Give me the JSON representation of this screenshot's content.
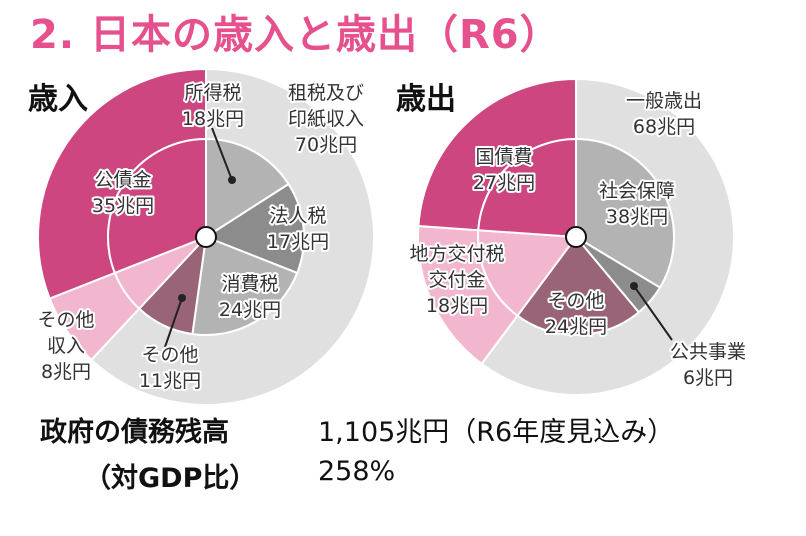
{
  "title": "2. 日本の歳入と歳出（R6）",
  "chart_data": [
    {
      "type": "pie",
      "title": "歳入",
      "unit": "兆円",
      "inner_ring": {
        "slices": [
          {
            "label": "所得税",
            "value": 18,
            "value_text": "18兆円",
            "color": "#b3b3b3"
          },
          {
            "label": "法人税",
            "value": 17,
            "value_text": "17兆円",
            "color": "#8c8c8c"
          },
          {
            "label": "消費税",
            "value": 24,
            "value_text": "24兆円",
            "color": "#b3b3b3"
          },
          {
            "label": "その他",
            "value": 11,
            "value_text": "11兆円",
            "color": "#9a6478"
          },
          {
            "label": "その他収入",
            "value": 8,
            "value_text": "8兆円",
            "color": "#f2b6cf"
          },
          {
            "label": "公債金",
            "value": 35,
            "value_text": "35兆円",
            "color": "#cd4680"
          }
        ]
      },
      "outer_ring": {
        "slices": [
          {
            "label": "租税及び印紙収入",
            "value": 70,
            "value_text": "70兆円",
            "color": "#e0e0e0"
          },
          {
            "label": "その他収入",
            "value": 8,
            "value_text": "8兆円",
            "color": "#f2b6cf"
          },
          {
            "label": "公債金",
            "value": 35,
            "value_text": "35兆円",
            "color": "#cd4680"
          }
        ]
      }
    },
    {
      "type": "pie",
      "title": "歳出",
      "unit": "兆円",
      "inner_ring": {
        "slices": [
          {
            "label": "社会保障",
            "value": 38,
            "value_text": "38兆円",
            "color": "#b3b3b3"
          },
          {
            "label": "公共事業",
            "value": 6,
            "value_text": "6兆円",
            "color": "#8c8c8c"
          },
          {
            "label": "その他",
            "value": 24,
            "value_text": "24兆円",
            "color": "#9a6478"
          },
          {
            "label": "地方交付税交付金",
            "value": 18,
            "value_text": "18兆円",
            "color": "#f2b6cf"
          },
          {
            "label": "国債費",
            "value": 27,
            "value_text": "27兆円",
            "color": "#cd4680"
          }
        ]
      },
      "outer_ring": {
        "slices": [
          {
            "label": "一般歳出",
            "value": 68,
            "value_text": "68兆円",
            "color": "#e0e0e0"
          },
          {
            "label": "地方交付税交付金",
            "value": 18,
            "value_text": "18兆円",
            "color": "#f2b6cf"
          },
          {
            "label": "国債費",
            "value": 27,
            "value_text": "27兆円",
            "color": "#cd4680"
          }
        ]
      }
    }
  ],
  "footer": {
    "debt_label": "政府の債務残高",
    "debt_value": "1,105兆円（R6年度見込み）",
    "ratio_label": "（対GDP比）",
    "ratio_value": "258%"
  }
}
